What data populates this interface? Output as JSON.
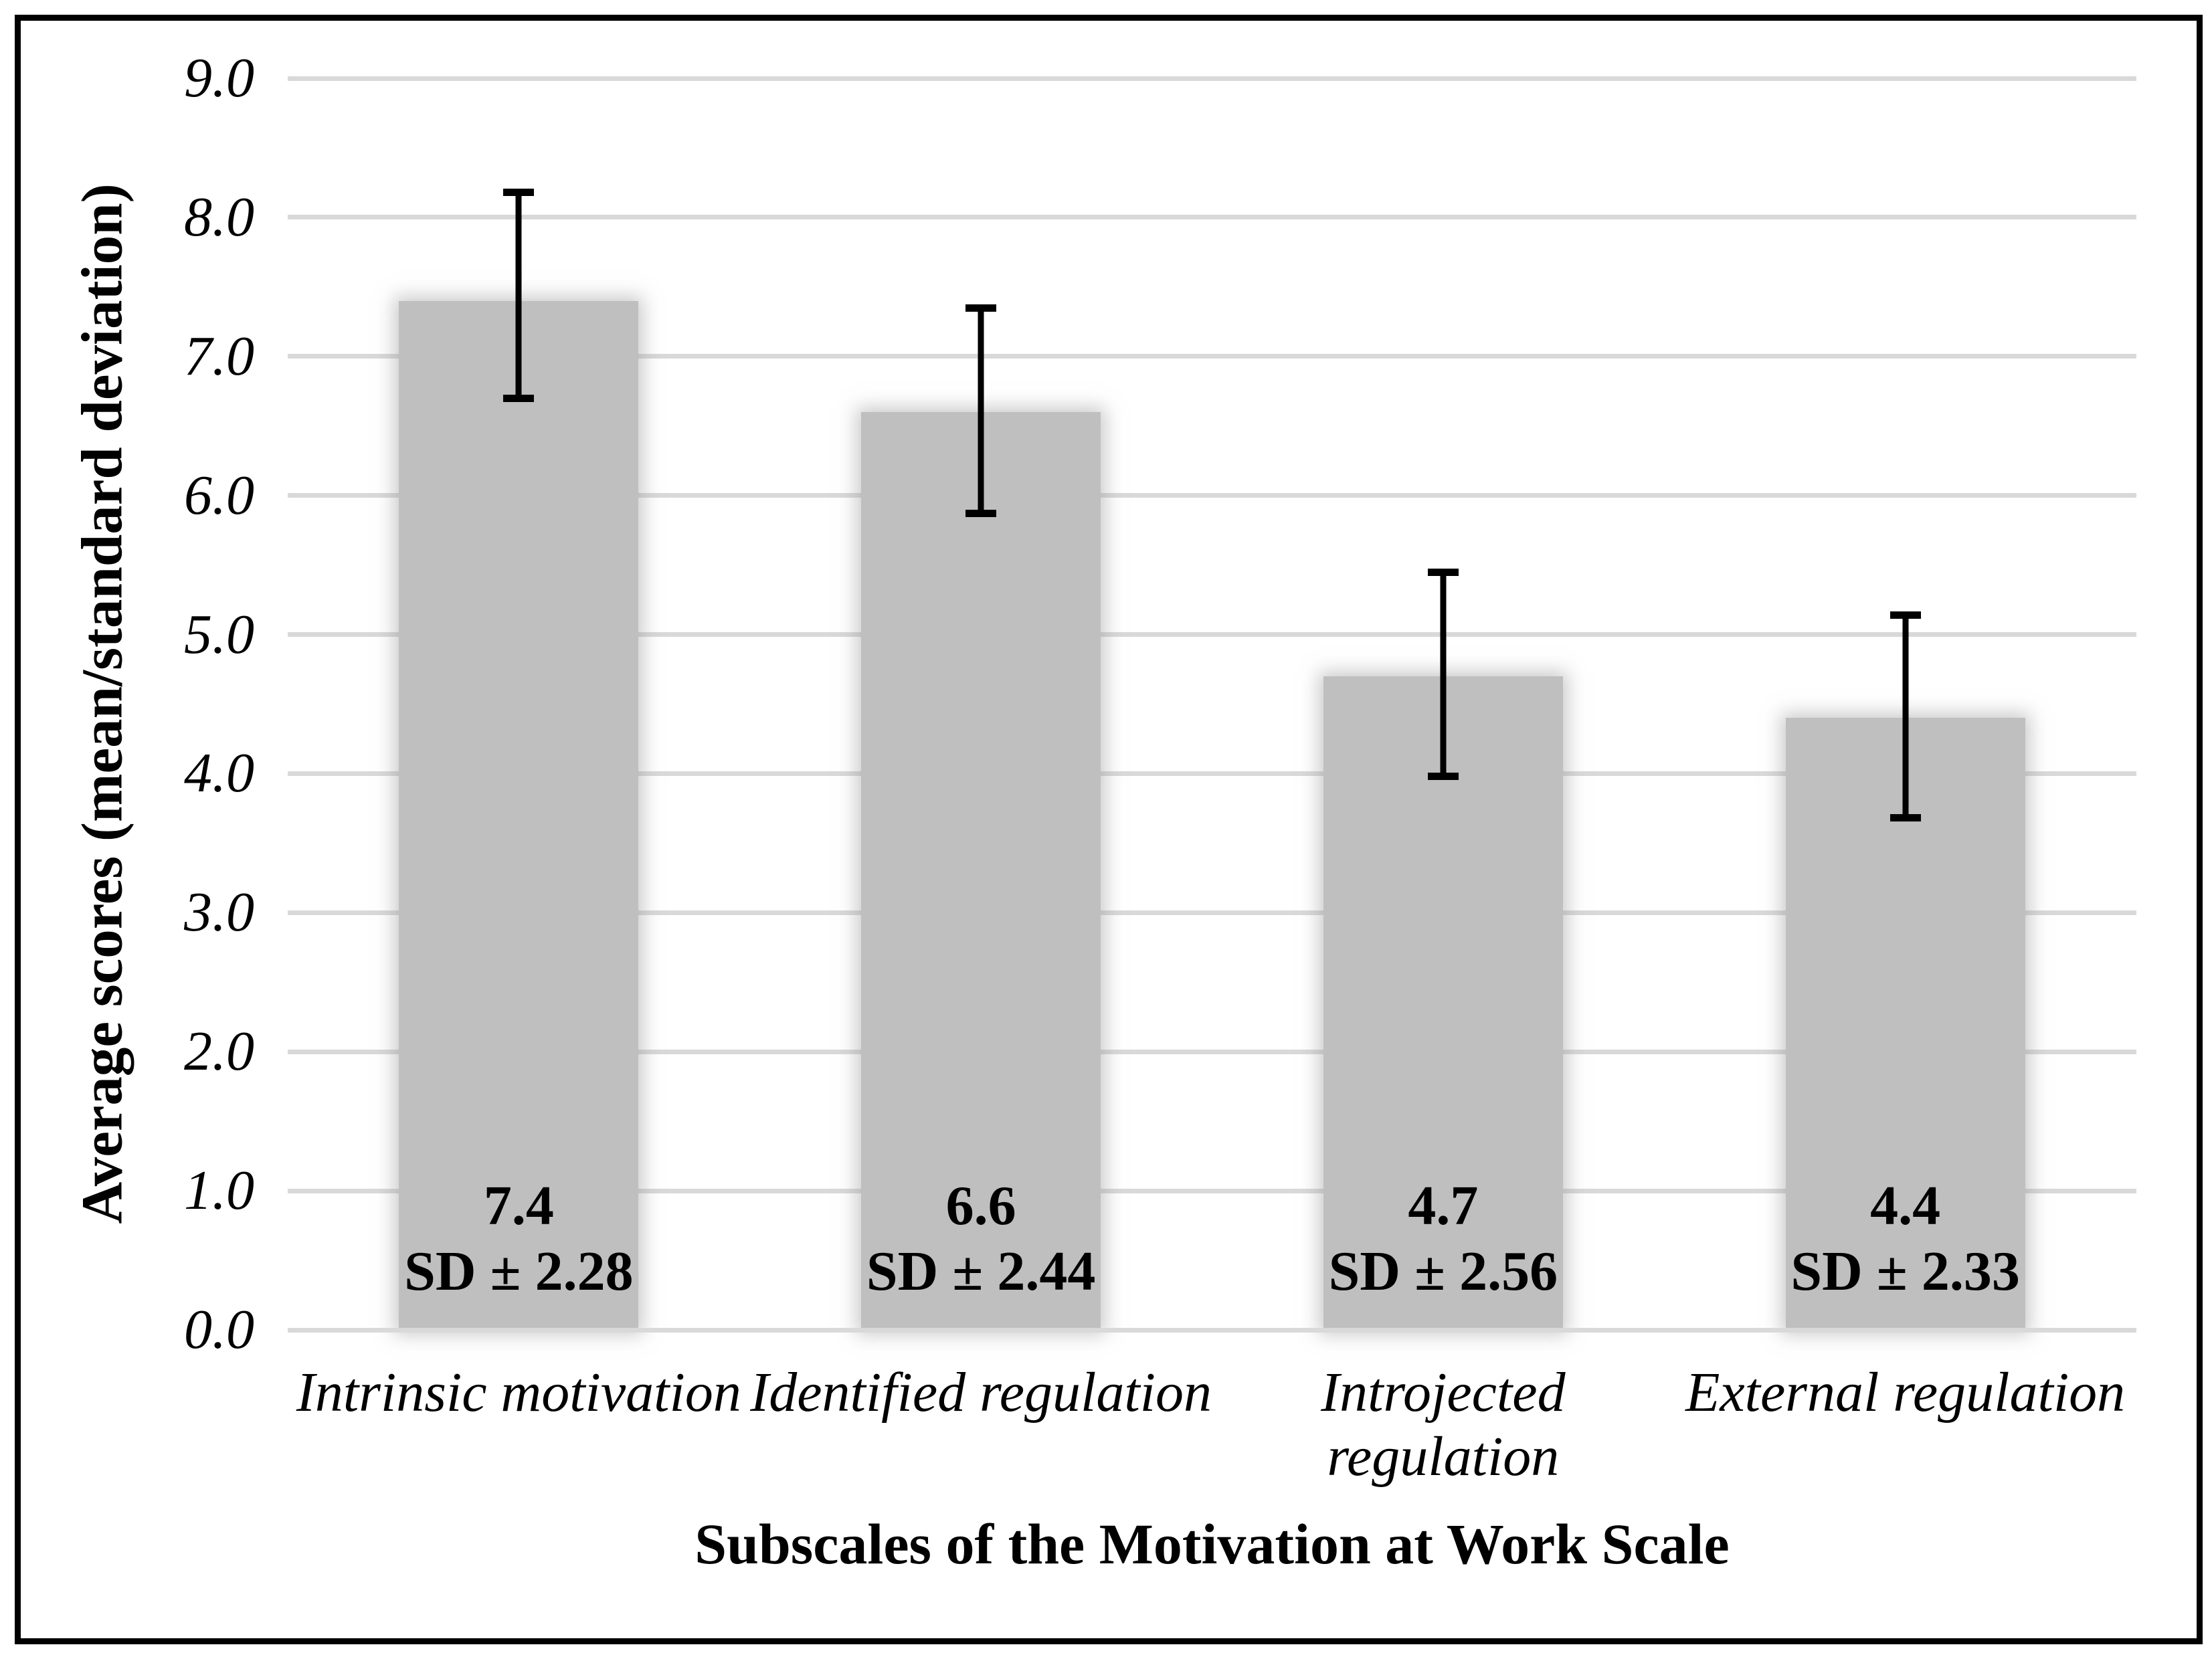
{
  "chart_data": {
    "type": "bar",
    "title": "",
    "categories": [
      "Intrinsic motivation",
      "Identified regulation",
      "Introjected\nregulation",
      "External regulation"
    ],
    "values": [
      7.4,
      6.6,
      4.7,
      4.4
    ],
    "sd_values": [
      2.28,
      2.44,
      2.56,
      2.33
    ],
    "value_labels": [
      "7.4",
      "6.6",
      "4.7",
      "4.4"
    ],
    "sd_labels": [
      "SD ± 2.28",
      "SD ± 2.44",
      "SD ± 2.56",
      "SD ± 2.33"
    ],
    "error_upper": [
      8.18,
      7.35,
      5.45,
      5.14
    ],
    "error_lower": [
      6.7,
      5.87,
      3.98,
      3.68
    ],
    "xlabel": "Subscales of the Motivation at Work Scale",
    "ylabel": "Average scores (mean/standard deviation)",
    "ylim": [
      0,
      9
    ],
    "yticks": [
      "9.0",
      "8.0",
      "7.0",
      "6.0",
      "5.0",
      "4.0",
      "3.0",
      "2.0",
      "1.0",
      "0.0"
    ],
    "grid": true,
    "legend": false,
    "bar_color": "#bfbfbf",
    "gridline_color": "#d9d9d9",
    "error_bar_color": "#000000",
    "text_color": "#000000",
    "border_color": "#000000"
  }
}
